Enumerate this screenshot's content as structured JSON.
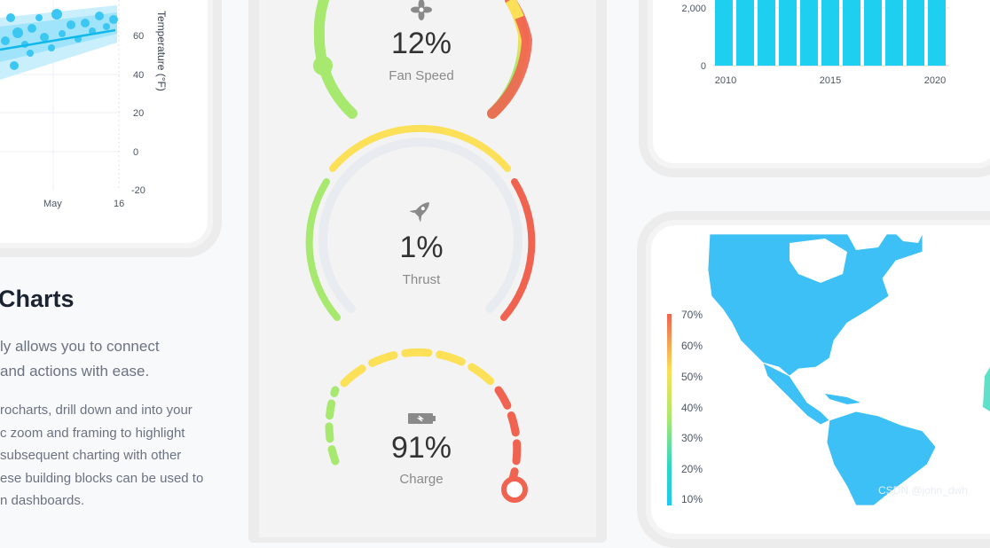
{
  "left_chart": {
    "axis_title": "Temperature (°F)",
    "y_ticks": [
      "60",
      "40",
      "20",
      "0",
      "-20"
    ],
    "x_ticks": [
      "May",
      "16"
    ]
  },
  "article": {
    "heading": "Charts",
    "lead_lines": [
      "ly allows you to connect",
      "and actions with ease."
    ],
    "body_lines": [
      "rocharts, drill down and into your",
      "c zoom and framing to highlight",
      "subsequent charting with other",
      "ese building blocks can be used to",
      "n dashboards."
    ]
  },
  "gauges": [
    {
      "value": "12%",
      "label": "Fan Speed",
      "icon": "fan-icon",
      "level": 0.12
    },
    {
      "value": "1%",
      "label": "Thrust",
      "icon": "rocket-icon",
      "level": 0.01
    },
    {
      "value": "91%",
      "label": "Charge",
      "icon": "battery-icon",
      "level": 0.91
    }
  ],
  "bar_chart": {
    "y_ticks": [
      "2,000",
      "0"
    ],
    "x_ticks": [
      "2010",
      "2015",
      "2020"
    ]
  },
  "map_legend": {
    "ticks": [
      "70%",
      "60%",
      "50%",
      "40%",
      "30%",
      "20%",
      "10%"
    ],
    "colors": [
      "#ef6350",
      "#fbe058",
      "#a7e86f",
      "#2cd6c5",
      "#1ec8f0"
    ]
  },
  "watermark": "CSDN @john_dwh"
}
